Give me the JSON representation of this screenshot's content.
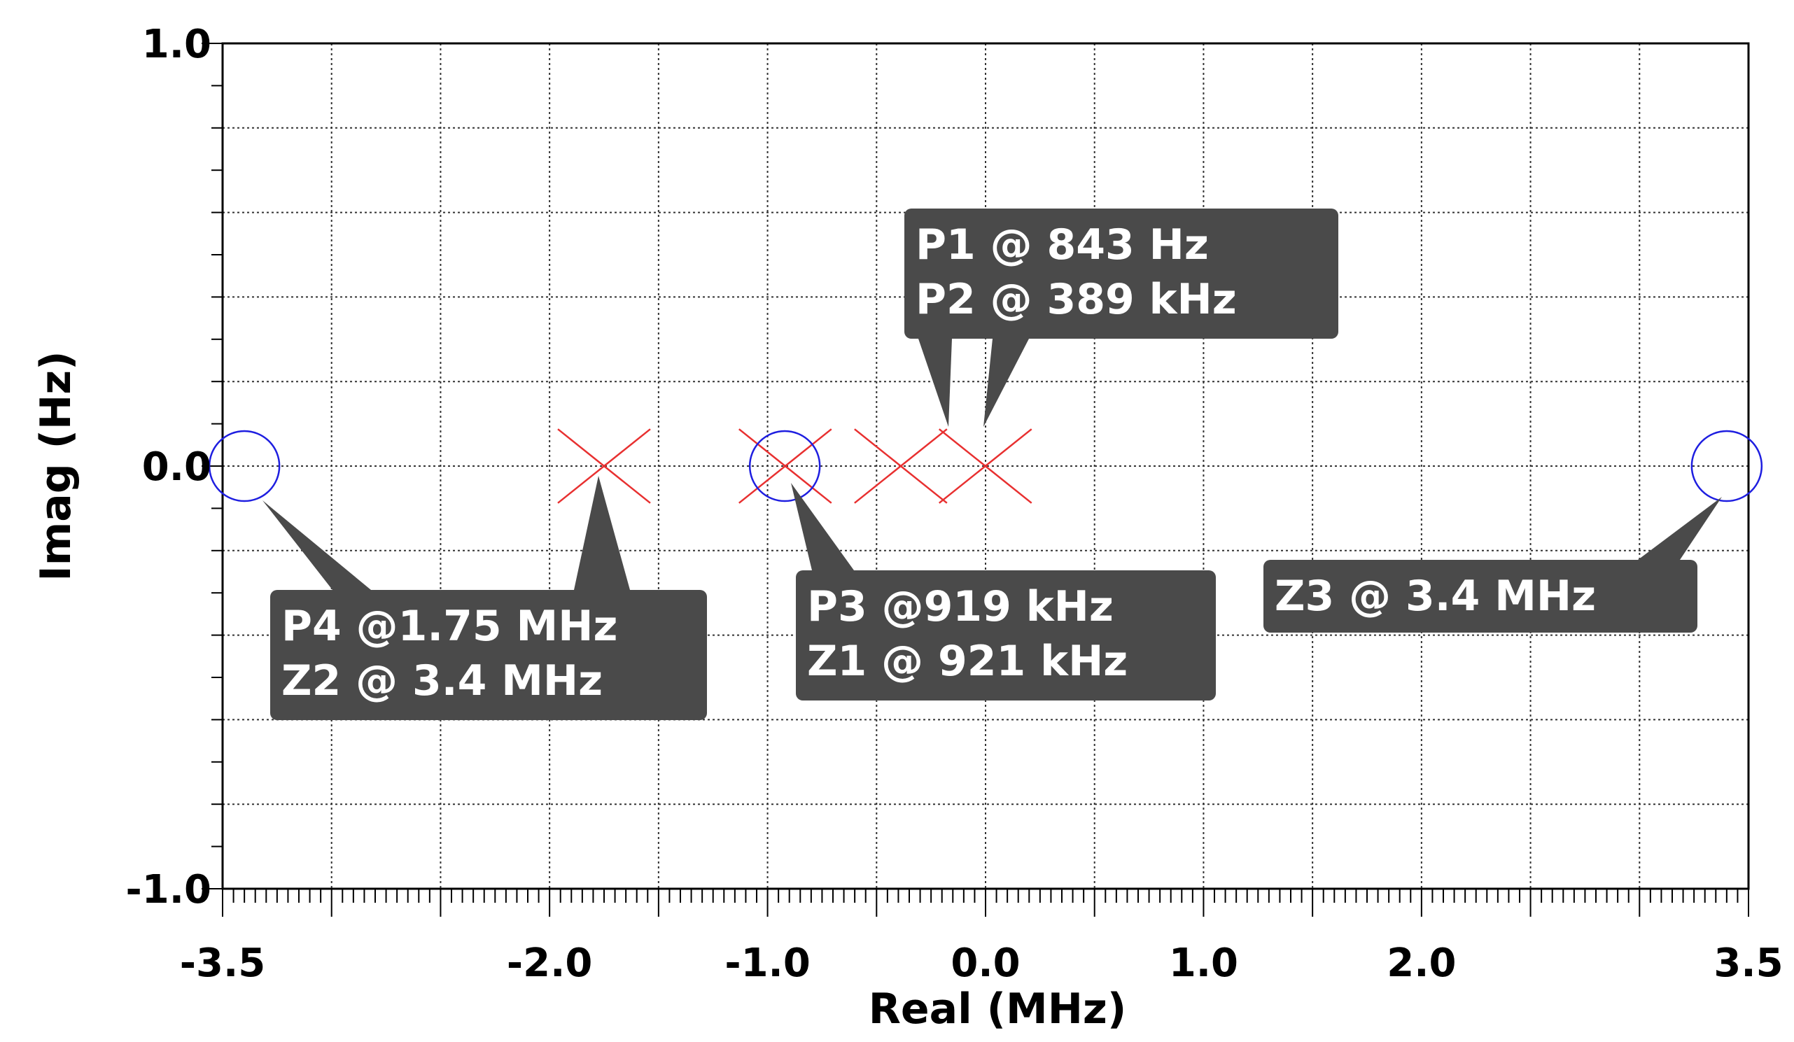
{
  "chart_data": {
    "type": "scatter",
    "title": "",
    "xlabel": "Real (MHz)",
    "ylabel": "Imag (Hz)",
    "xlim": [
      -3.5,
      3.5
    ],
    "ylim": [
      -1.0,
      1.0
    ],
    "x_ticks": [
      -3.5,
      -2.0,
      -1.0,
      0.0,
      1.0,
      2.0,
      3.5
    ],
    "x_tick_labels": [
      "-3.5",
      "-2.0",
      "-1.0",
      "0.0",
      "1.0",
      "2.0",
      "3.5"
    ],
    "y_ticks": [
      -1.0,
      0.0,
      1.0
    ],
    "y_tick_labels": [
      "-1.0",
      "0.0",
      "1.0"
    ],
    "grid": true,
    "series": [
      {
        "name": "",
        "marker": "x",
        "color": "#e83030",
        "points": [
          {
            "x": -0.000843,
            "y": 0.0
          },
          {
            "x": -0.389,
            "y": 0.0
          },
          {
            "x": -0.919,
            "y": 0.0
          },
          {
            "x": -1.75,
            "y": 0.0
          }
        ]
      },
      {
        "name": "",
        "marker": "o",
        "color": "#1e1ee0",
        "points": [
          {
            "x": -0.921,
            "y": 0.0
          },
          {
            "x": -3.4,
            "y": 0.0
          },
          {
            "x": 3.4,
            "y": 0.0
          }
        ]
      }
    ],
    "annotations": [
      {
        "lines": [
          "P1 @ 843 Hz",
          "P2 @ 389 kHz"
        ],
        "targets": [
          [
            -0.389,
            0.0
          ],
          [
            -0.000843,
            0.0
          ]
        ]
      },
      {
        "lines": [
          "P4 @1.75 MHz",
          "Z2 @ 3.4 MHz"
        ],
        "targets": [
          [
            -3.4,
            0.0
          ],
          [
            -1.75,
            0.0
          ]
        ]
      },
      {
        "lines": [
          "P3 @919 kHz",
          "Z1 @ 921 kHz"
        ],
        "targets": [
          [
            -0.92,
            0.0
          ]
        ]
      },
      {
        "lines": [
          "Z3 @ 3.4 MHz"
        ],
        "targets": [
          [
            3.4,
            0.0
          ]
        ]
      }
    ]
  }
}
